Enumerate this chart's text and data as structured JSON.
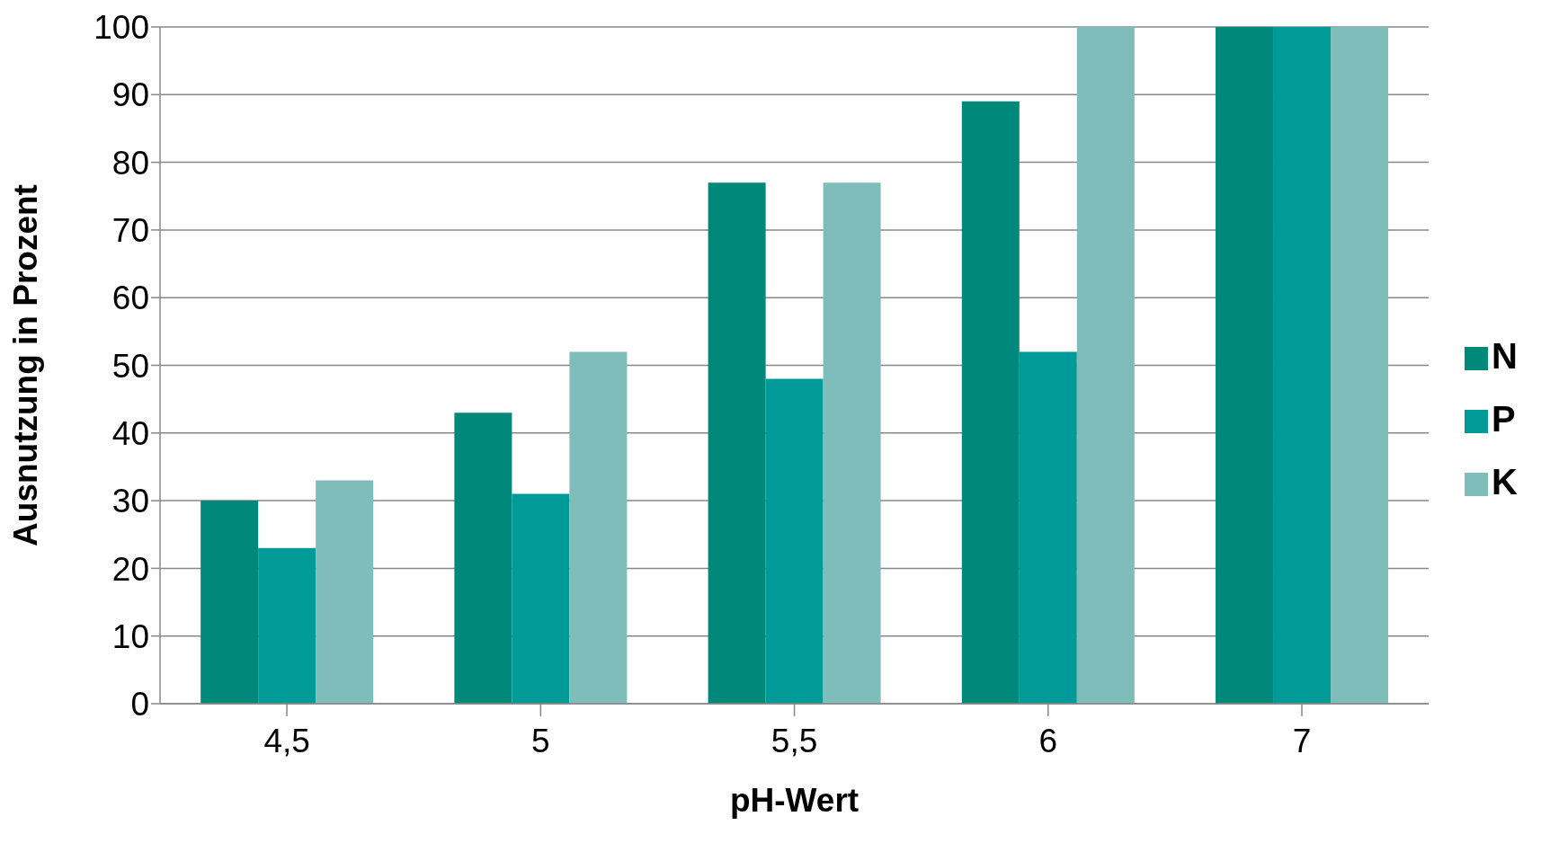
{
  "chart_data": {
    "type": "bar",
    "xlabel": "pH-Wert",
    "ylabel": "Ausnutzung in Prozent",
    "categories": [
      "4,5",
      "5",
      "5,5",
      "6",
      "7"
    ],
    "series": [
      {
        "name": "N",
        "color": "#00897b",
        "values": [
          30,
          43,
          77,
          89,
          100
        ]
      },
      {
        "name": "P",
        "color": "#009a98",
        "values": [
          23,
          31,
          48,
          52,
          100
        ]
      },
      {
        "name": "K",
        "color": "#7fbdba",
        "values": [
          33,
          52,
          77,
          100,
          100
        ]
      }
    ],
    "ylim": [
      0,
      100
    ],
    "yticks": [
      0,
      10,
      20,
      30,
      40,
      50,
      60,
      70,
      80,
      90,
      100
    ],
    "grid": "y",
    "legend": "right"
  }
}
